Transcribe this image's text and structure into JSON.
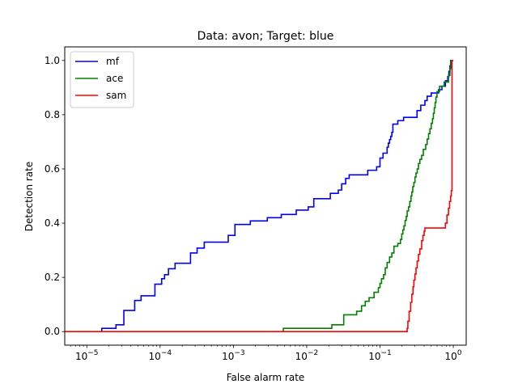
{
  "chart_data": {
    "type": "line",
    "title": "Data: avon; Target: blue",
    "xlabel": "False alarm rate",
    "ylabel": "Detection rate",
    "xscale": "log",
    "xlim": [
      5e-06,
      1.5
    ],
    "ylim": [
      -0.05,
      1.05
    ],
    "x_ticks": [
      {
        "value": 1e-05,
        "base": "10",
        "exp": "−5"
      },
      {
        "value": 0.0001,
        "base": "10",
        "exp": "−4"
      },
      {
        "value": 0.001,
        "base": "10",
        "exp": "−3"
      },
      {
        "value": 0.01,
        "base": "10",
        "exp": "−2"
      },
      {
        "value": 0.1,
        "base": "10",
        "exp": "−1"
      },
      {
        "value": 1,
        "base": "10",
        "exp": "0"
      }
    ],
    "y_ticks": [
      {
        "value": 0.0,
        "label": "0.0"
      },
      {
        "value": 0.2,
        "label": "0.2"
      },
      {
        "value": 0.4,
        "label": "0.4"
      },
      {
        "value": 0.6,
        "label": "0.6"
      },
      {
        "value": 0.8,
        "label": "0.8"
      },
      {
        "value": 1.0,
        "label": "1.0"
      }
    ],
    "legend_position": "upper-left",
    "series": [
      {
        "name": "mf",
        "color": "#0000ff",
        "points": [
          [
            1.6e-05,
            0.0
          ],
          [
            1.6e-05,
            0.012
          ],
          [
            2.5e-05,
            0.012
          ],
          [
            2.5e-05,
            0.025
          ],
          [
            3.2e-05,
            0.025
          ],
          [
            3.2e-05,
            0.078
          ],
          [
            4.5e-05,
            0.078
          ],
          [
            4.5e-05,
            0.115
          ],
          [
            5.5e-05,
            0.115
          ],
          [
            5.5e-05,
            0.132
          ],
          [
            8.5e-05,
            0.132
          ],
          [
            8.5e-05,
            0.175
          ],
          [
            0.000105,
            0.175
          ],
          [
            0.000105,
            0.195
          ],
          [
            0.000115,
            0.195
          ],
          [
            0.000115,
            0.21
          ],
          [
            0.00013,
            0.21
          ],
          [
            0.00013,
            0.232
          ],
          [
            0.00016,
            0.232
          ],
          [
            0.00016,
            0.252
          ],
          [
            0.00026,
            0.252
          ],
          [
            0.00026,
            0.29
          ],
          [
            0.00032,
            0.29
          ],
          [
            0.00032,
            0.308
          ],
          [
            0.0004,
            0.308
          ],
          [
            0.0004,
            0.33
          ],
          [
            0.00085,
            0.33
          ],
          [
            0.00085,
            0.355
          ],
          [
            0.00105,
            0.355
          ],
          [
            0.00105,
            0.395
          ],
          [
            0.0017,
            0.395
          ],
          [
            0.0017,
            0.408
          ],
          [
            0.0029,
            0.408
          ],
          [
            0.0029,
            0.42
          ],
          [
            0.0045,
            0.42
          ],
          [
            0.0045,
            0.432
          ],
          [
            0.0072,
            0.432
          ],
          [
            0.0072,
            0.448
          ],
          [
            0.0105,
            0.448
          ],
          [
            0.0105,
            0.46
          ],
          [
            0.0125,
            0.46
          ],
          [
            0.0125,
            0.49
          ],
          [
            0.021,
            0.49
          ],
          [
            0.021,
            0.51
          ],
          [
            0.027,
            0.51
          ],
          [
            0.027,
            0.522
          ],
          [
            0.03,
            0.522
          ],
          [
            0.03,
            0.545
          ],
          [
            0.034,
            0.545
          ],
          [
            0.034,
            0.565
          ],
          [
            0.038,
            0.565
          ],
          [
            0.038,
            0.578
          ],
          [
            0.068,
            0.578
          ],
          [
            0.068,
            0.595
          ],
          [
            0.09,
            0.595
          ],
          [
            0.09,
            0.608
          ],
          [
            0.1,
            0.608
          ],
          [
            0.1,
            0.64
          ],
          [
            0.11,
            0.64
          ],
          [
            0.11,
            0.658
          ],
          [
            0.125,
            0.658
          ],
          [
            0.125,
            0.68
          ],
          [
            0.13,
            0.68
          ],
          [
            0.13,
            0.695
          ],
          [
            0.135,
            0.695
          ],
          [
            0.135,
            0.708
          ],
          [
            0.14,
            0.708
          ],
          [
            0.14,
            0.72
          ],
          [
            0.145,
            0.72
          ],
          [
            0.145,
            0.735
          ],
          [
            0.15,
            0.735
          ],
          [
            0.15,
            0.765
          ],
          [
            0.175,
            0.765
          ],
          [
            0.175,
            0.778
          ],
          [
            0.21,
            0.778
          ],
          [
            0.21,
            0.79
          ],
          [
            0.32,
            0.79
          ],
          [
            0.32,
            0.815
          ],
          [
            0.36,
            0.815
          ],
          [
            0.36,
            0.835
          ],
          [
            0.41,
            0.835
          ],
          [
            0.41,
            0.852
          ],
          [
            0.44,
            0.852
          ],
          [
            0.44,
            0.868
          ],
          [
            0.5,
            0.868
          ],
          [
            0.5,
            0.88
          ],
          [
            0.63,
            0.88
          ],
          [
            0.63,
            0.892
          ],
          [
            0.7,
            0.892
          ],
          [
            0.7,
            0.905
          ],
          [
            0.78,
            0.905
          ],
          [
            0.78,
            0.925
          ],
          [
            0.84,
            0.925
          ],
          [
            0.84,
            0.94
          ],
          [
            0.87,
            0.94
          ],
          [
            0.87,
            0.96
          ],
          [
            0.9,
            0.96
          ],
          [
            0.9,
            0.98
          ],
          [
            0.92,
            0.98
          ],
          [
            0.92,
            1.0
          ],
          [
            1.0,
            1.0
          ]
        ]
      },
      {
        "name": "ace",
        "color": "#008000",
        "points": [
          [
            0.0048,
            0.0
          ],
          [
            0.0048,
            0.012
          ],
          [
            0.022,
            0.012
          ],
          [
            0.022,
            0.025
          ],
          [
            0.032,
            0.025
          ],
          [
            0.032,
            0.062
          ],
          [
            0.048,
            0.062
          ],
          [
            0.048,
            0.075
          ],
          [
            0.056,
            0.075
          ],
          [
            0.056,
            0.095
          ],
          [
            0.063,
            0.095
          ],
          [
            0.063,
            0.112
          ],
          [
            0.071,
            0.112
          ],
          [
            0.071,
            0.125
          ],
          [
            0.083,
            0.125
          ],
          [
            0.083,
            0.145
          ],
          [
            0.095,
            0.145
          ],
          [
            0.095,
            0.162
          ],
          [
            0.1,
            0.162
          ],
          [
            0.1,
            0.178
          ],
          [
            0.105,
            0.178
          ],
          [
            0.105,
            0.195
          ],
          [
            0.112,
            0.195
          ],
          [
            0.112,
            0.21
          ],
          [
            0.118,
            0.21
          ],
          [
            0.118,
            0.235
          ],
          [
            0.125,
            0.235
          ],
          [
            0.125,
            0.255
          ],
          [
            0.135,
            0.255
          ],
          [
            0.135,
            0.275
          ],
          [
            0.145,
            0.275
          ],
          [
            0.145,
            0.29
          ],
          [
            0.155,
            0.29
          ],
          [
            0.155,
            0.315
          ],
          [
            0.175,
            0.315
          ],
          [
            0.175,
            0.325
          ],
          [
            0.19,
            0.325
          ],
          [
            0.19,
            0.34
          ],
          [
            0.198,
            0.34
          ],
          [
            0.198,
            0.36
          ],
          [
            0.205,
            0.36
          ],
          [
            0.205,
            0.375
          ],
          [
            0.212,
            0.375
          ],
          [
            0.212,
            0.39
          ],
          [
            0.22,
            0.39
          ],
          [
            0.22,
            0.41
          ],
          [
            0.228,
            0.41
          ],
          [
            0.228,
            0.425
          ],
          [
            0.235,
            0.425
          ],
          [
            0.235,
            0.445
          ],
          [
            0.245,
            0.445
          ],
          [
            0.245,
            0.46
          ],
          [
            0.255,
            0.46
          ],
          [
            0.255,
            0.48
          ],
          [
            0.265,
            0.48
          ],
          [
            0.265,
            0.5
          ],
          [
            0.272,
            0.5
          ],
          [
            0.272,
            0.515
          ],
          [
            0.28,
            0.515
          ],
          [
            0.28,
            0.535
          ],
          [
            0.29,
            0.535
          ],
          [
            0.29,
            0.55
          ],
          [
            0.3,
            0.55
          ],
          [
            0.3,
            0.57
          ],
          [
            0.31,
            0.57
          ],
          [
            0.31,
            0.585
          ],
          [
            0.322,
            0.585
          ],
          [
            0.322,
            0.6
          ],
          [
            0.335,
            0.6
          ],
          [
            0.335,
            0.62
          ],
          [
            0.35,
            0.62
          ],
          [
            0.35,
            0.635
          ],
          [
            0.37,
            0.635
          ],
          [
            0.37,
            0.65
          ],
          [
            0.39,
            0.65
          ],
          [
            0.39,
            0.672
          ],
          [
            0.42,
            0.672
          ],
          [
            0.42,
            0.69
          ],
          [
            0.44,
            0.69
          ],
          [
            0.44,
            0.71
          ],
          [
            0.46,
            0.71
          ],
          [
            0.46,
            0.73
          ],
          [
            0.48,
            0.73
          ],
          [
            0.48,
            0.748
          ],
          [
            0.5,
            0.748
          ],
          [
            0.5,
            0.768
          ],
          [
            0.52,
            0.768
          ],
          [
            0.52,
            0.785
          ],
          [
            0.535,
            0.785
          ],
          [
            0.535,
            0.805
          ],
          [
            0.55,
            0.805
          ],
          [
            0.55,
            0.825
          ],
          [
            0.565,
            0.825
          ],
          [
            0.565,
            0.845
          ],
          [
            0.58,
            0.845
          ],
          [
            0.58,
            0.865
          ],
          [
            0.6,
            0.865
          ],
          [
            0.6,
            0.885
          ],
          [
            0.65,
            0.885
          ],
          [
            0.65,
            0.905
          ],
          [
            0.75,
            0.905
          ],
          [
            0.75,
            0.92
          ],
          [
            0.86,
            0.92
          ],
          [
            0.86,
            0.945
          ],
          [
            0.9,
            0.945
          ],
          [
            0.9,
            0.97
          ],
          [
            0.93,
            0.97
          ],
          [
            0.93,
            1.0
          ],
          [
            1.0,
            1.0
          ]
        ]
      },
      {
        "name": "sam",
        "color": "#ff0000",
        "points": [
          [
            5e-06,
            0.0
          ],
          [
            0.235,
            0.0
          ],
          [
            0.235,
            0.012
          ],
          [
            0.24,
            0.012
          ],
          [
            0.24,
            0.038
          ],
          [
            0.25,
            0.038
          ],
          [
            0.25,
            0.075
          ],
          [
            0.262,
            0.075
          ],
          [
            0.262,
            0.108
          ],
          [
            0.272,
            0.108
          ],
          [
            0.272,
            0.138
          ],
          [
            0.282,
            0.138
          ],
          [
            0.282,
            0.165
          ],
          [
            0.29,
            0.165
          ],
          [
            0.29,
            0.19
          ],
          [
            0.3,
            0.19
          ],
          [
            0.3,
            0.212
          ],
          [
            0.31,
            0.212
          ],
          [
            0.31,
            0.235
          ],
          [
            0.322,
            0.235
          ],
          [
            0.322,
            0.26
          ],
          [
            0.335,
            0.26
          ],
          [
            0.335,
            0.285
          ],
          [
            0.35,
            0.285
          ],
          [
            0.35,
            0.305
          ],
          [
            0.37,
            0.305
          ],
          [
            0.37,
            0.335
          ],
          [
            0.385,
            0.335
          ],
          [
            0.385,
            0.355
          ],
          [
            0.4,
            0.355
          ],
          [
            0.4,
            0.37
          ],
          [
            0.41,
            0.37
          ],
          [
            0.41,
            0.382
          ],
          [
            0.78,
            0.382
          ],
          [
            0.78,
            0.4
          ],
          [
            0.82,
            0.4
          ],
          [
            0.82,
            0.43
          ],
          [
            0.86,
            0.43
          ],
          [
            0.86,
            0.455
          ],
          [
            0.89,
            0.455
          ],
          [
            0.89,
            0.48
          ],
          [
            0.92,
            0.48
          ],
          [
            0.92,
            0.5
          ],
          [
            0.94,
            0.5
          ],
          [
            0.94,
            0.52
          ],
          [
            0.96,
            0.52
          ],
          [
            0.96,
            1.0
          ],
          [
            1.0,
            1.0
          ]
        ]
      }
    ]
  }
}
